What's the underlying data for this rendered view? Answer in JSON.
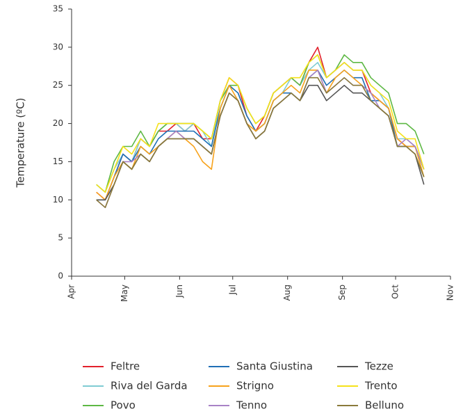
{
  "chart_data": {
    "type": "line",
    "y_label": "Temperature (ºC)",
    "x": [
      14,
      19,
      24,
      29,
      34,
      39,
      44,
      49,
      54,
      59,
      64,
      69,
      74,
      79,
      84,
      89,
      94,
      99,
      104,
      109,
      114,
      119,
      124,
      129,
      134,
      139,
      144,
      149,
      154,
      159,
      164,
      169,
      174,
      179,
      184,
      189,
      194,
      199
    ],
    "xlim": [
      0,
      214
    ],
    "xticks": [
      {
        "value": 0,
        "label": "Apr"
      },
      {
        "value": 30,
        "label": "May"
      },
      {
        "value": 61,
        "label": "Jun"
      },
      {
        "value": 91,
        "label": "Jul"
      },
      {
        "value": 122,
        "label": "Aug"
      },
      {
        "value": 153,
        "label": "Sep"
      },
      {
        "value": 183,
        "label": "Oct"
      },
      {
        "value": 214,
        "label": "Nov"
      }
    ],
    "ylim": [
      0,
      35
    ],
    "yticks": [
      0,
      5,
      10,
      15,
      20,
      25,
      30,
      35
    ],
    "grid": false,
    "legend": "bottom",
    "series": [
      {
        "name": "Feltre",
        "color": "#e2202b",
        "values": [
          11,
          10,
          13,
          16,
          15,
          18,
          17,
          19,
          19,
          20,
          19,
          20,
          18,
          18,
          23,
          26,
          25,
          21,
          19,
          21,
          24,
          25,
          26,
          25,
          28,
          30,
          26,
          27,
          28,
          27,
          27,
          24,
          23,
          22,
          18,
          17,
          17,
          14
        ]
      },
      {
        "name": "Riva del Garda",
        "color": "#7fcbd3",
        "values": [
          12,
          11,
          14,
          16,
          15,
          18,
          17,
          19,
          20,
          20,
          19,
          20,
          19,
          17,
          23,
          25,
          24,
          21,
          19,
          20,
          23,
          24,
          26,
          25,
          27,
          28,
          26,
          27,
          28,
          27,
          27,
          25,
          24,
          22,
          18,
          18,
          17,
          14
        ]
      },
      {
        "name": "Povo",
        "color": "#5db844",
        "values": [
          12,
          11,
          15,
          17,
          17,
          19,
          17,
          19,
          20,
          20,
          20,
          20,
          19,
          18,
          23,
          25,
          25,
          22,
          20,
          21,
          24,
          25,
          26,
          25,
          28,
          29,
          26,
          27,
          29,
          28,
          28,
          26,
          25,
          24,
          20,
          20,
          19,
          16
        ]
      },
      {
        "name": "Santa Giustina",
        "color": "#1f6fb5",
        "values": [
          10,
          10,
          13,
          16,
          15,
          17,
          16,
          18,
          19,
          19,
          19,
          19,
          18,
          17,
          22,
          25,
          24,
          21,
          19,
          20,
          23,
          24,
          24,
          23,
          26,
          27,
          25,
          26,
          27,
          26,
          26,
          23,
          23,
          22,
          17,
          17,
          17,
          14
        ]
      },
      {
        "name": "Strigno",
        "color": "#f7a21b",
        "values": [
          11,
          10,
          13,
          15,
          14,
          17,
          16,
          17,
          18,
          19,
          18,
          17,
          15,
          14,
          22,
          25,
          23,
          20,
          19,
          20,
          23,
          24,
          25,
          24,
          27,
          27,
          24,
          26,
          27,
          26,
          25,
          24,
          23,
          22,
          18,
          17,
          17,
          13
        ]
      },
      {
        "name": "Tenno",
        "color": "#a882c6",
        "values": [
          10,
          9,
          12,
          15,
          15,
          16,
          15,
          17,
          18,
          19,
          18,
          18,
          17,
          16,
          21,
          24,
          23,
          20,
          18,
          19,
          22,
          23,
          24,
          23,
          26,
          27,
          24,
          25,
          26,
          25,
          25,
          24,
          22,
          21,
          17,
          18,
          17,
          14
        ]
      },
      {
        "name": "Tezze",
        "color": "#555555",
        "values": [
          10,
          10,
          12,
          15,
          14,
          16,
          15,
          17,
          18,
          18,
          18,
          18,
          17,
          16,
          21,
          24,
          23,
          20,
          18,
          19,
          22,
          23,
          24,
          23,
          25,
          25,
          23,
          24,
          25,
          24,
          24,
          23,
          22,
          21,
          17,
          17,
          16,
          12
        ]
      },
      {
        "name": "Trento",
        "color": "#f5e21a",
        "values": [
          12,
          11,
          14,
          17,
          16,
          18,
          17,
          20,
          20,
          20,
          20,
          20,
          19,
          18,
          23,
          26,
          25,
          22,
          20,
          21,
          24,
          25,
          26,
          26,
          28,
          29,
          26,
          27,
          28,
          27,
          27,
          25,
          24,
          23,
          19,
          18,
          18,
          14
        ]
      },
      {
        "name": "Belluno",
        "color": "#8a7a3a",
        "values": [
          10,
          9,
          12,
          15,
          14,
          16,
          15,
          17,
          18,
          18,
          18,
          18,
          17,
          16,
          21,
          24,
          23,
          20,
          18,
          19,
          22,
          23,
          24,
          23,
          26,
          26,
          24,
          25,
          26,
          25,
          25,
          23,
          22,
          21,
          17,
          17,
          16,
          13
        ]
      }
    ]
  }
}
